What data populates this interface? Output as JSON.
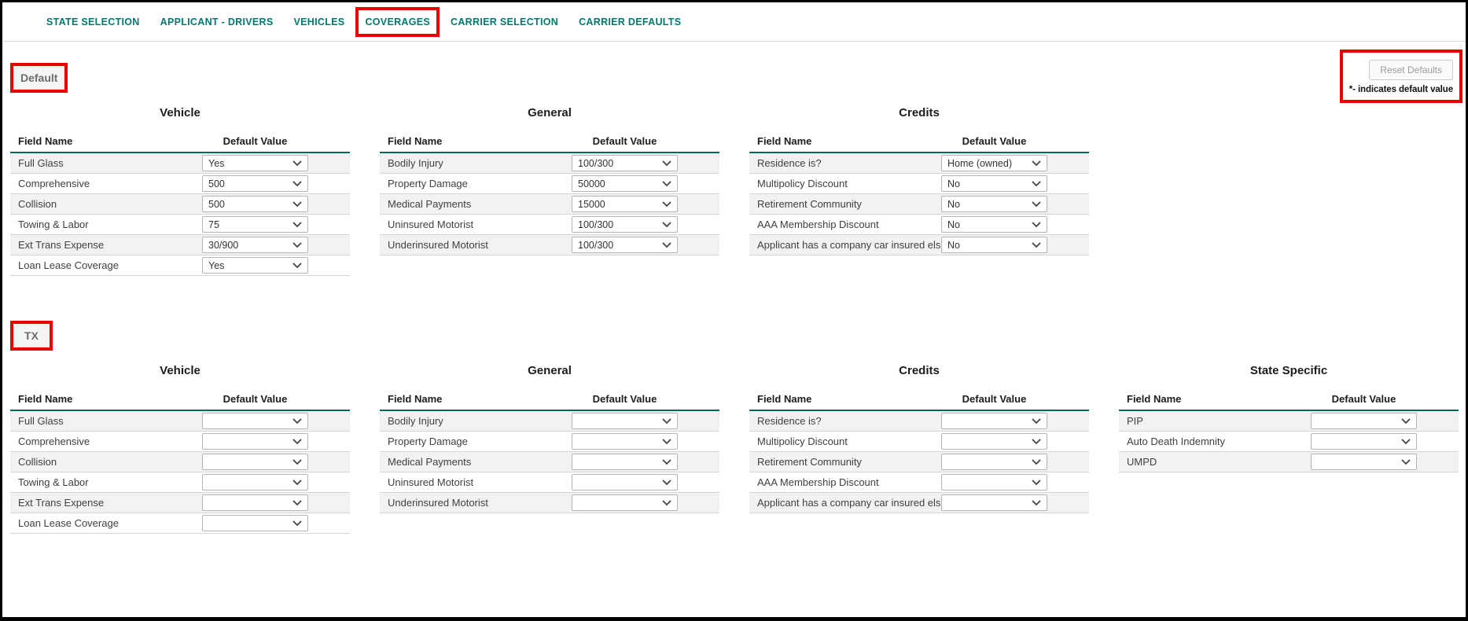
{
  "nav": {
    "tabs": [
      {
        "label": "STATE SELECTION",
        "annotated": false
      },
      {
        "label": "APPLICANT - DRIVERS",
        "annotated": false
      },
      {
        "label": "VEHICLES",
        "annotated": false
      },
      {
        "label": "COVERAGES",
        "annotated": true
      },
      {
        "label": "CARRIER SELECTION",
        "annotated": false
      },
      {
        "label": "CARRIER DEFAULTS",
        "annotated": false
      }
    ]
  },
  "toolbar": {
    "reset_button_label": "Reset Defaults",
    "note": "*- indicates default value"
  },
  "colors": {
    "tab_teal": "#00786e",
    "header_rule_teal": "#00695c",
    "annotation_red": "#e90000",
    "row_stripe": "#f2f2f2"
  },
  "sections": [
    {
      "label": "Default",
      "tables": [
        {
          "title": "Vehicle",
          "field_header": "Field Name",
          "value_header": "Default Value",
          "rows": [
            {
              "field": "Full Glass",
              "value": "Yes"
            },
            {
              "field": "Comprehensive",
              "value": "500"
            },
            {
              "field": "Collision",
              "value": "500"
            },
            {
              "field": "Towing & Labor",
              "value": "75"
            },
            {
              "field": "Ext Trans Expense",
              "value": "30/900"
            },
            {
              "field": "Loan Lease Coverage",
              "value": "Yes"
            }
          ]
        },
        {
          "title": "General",
          "field_header": "Field Name",
          "value_header": "Default Value",
          "rows": [
            {
              "field": "Bodily Injury",
              "value": "100/300"
            },
            {
              "field": "Property Damage",
              "value": "50000"
            },
            {
              "field": "Medical Payments",
              "value": "15000"
            },
            {
              "field": "Uninsured Motorist",
              "value": "100/300"
            },
            {
              "field": "Underinsured Motorist",
              "value": "100/300"
            }
          ]
        },
        {
          "title": "Credits",
          "field_header": "Field Name",
          "value_header": "Default Value",
          "rows": [
            {
              "field": "Residence is?",
              "value": "Home (owned)"
            },
            {
              "field": "Multipolicy Discount",
              "value": "No"
            },
            {
              "field": "Retirement Community",
              "value": "No"
            },
            {
              "field": "AAA Membership Discount",
              "value": "No"
            },
            {
              "field": "Applicant has a company car insured elsewhere",
              "value": "No"
            }
          ]
        }
      ]
    },
    {
      "label": "TX",
      "tables": [
        {
          "title": "Vehicle",
          "field_header": "Field Name",
          "value_header": "Default Value",
          "rows": [
            {
              "field": "Full Glass",
              "value": ""
            },
            {
              "field": "Comprehensive",
              "value": ""
            },
            {
              "field": "Collision",
              "value": ""
            },
            {
              "field": "Towing & Labor",
              "value": ""
            },
            {
              "field": "Ext Trans Expense",
              "value": ""
            },
            {
              "field": "Loan Lease Coverage",
              "value": ""
            }
          ]
        },
        {
          "title": "General",
          "field_header": "Field Name",
          "value_header": "Default Value",
          "rows": [
            {
              "field": "Bodily Injury",
              "value": ""
            },
            {
              "field": "Property Damage",
              "value": ""
            },
            {
              "field": "Medical Payments",
              "value": ""
            },
            {
              "field": "Uninsured Motorist",
              "value": ""
            },
            {
              "field": "Underinsured Motorist",
              "value": ""
            }
          ]
        },
        {
          "title": "Credits",
          "field_header": "Field Name",
          "value_header": "Default Value",
          "rows": [
            {
              "field": "Residence is?",
              "value": ""
            },
            {
              "field": "Multipolicy Discount",
              "value": ""
            },
            {
              "field": "Retirement Community",
              "value": ""
            },
            {
              "field": "AAA Membership Discount",
              "value": ""
            },
            {
              "field": "Applicant has a company car insured elsewhere",
              "value": ""
            }
          ]
        },
        {
          "title": "State Specific",
          "field_header": "Field Name",
          "value_header": "Default Value",
          "rows": [
            {
              "field": "PIP",
              "value": ""
            },
            {
              "field": "Auto Death Indemnity",
              "value": ""
            },
            {
              "field": "UMPD",
              "value": ""
            }
          ]
        }
      ]
    }
  ]
}
